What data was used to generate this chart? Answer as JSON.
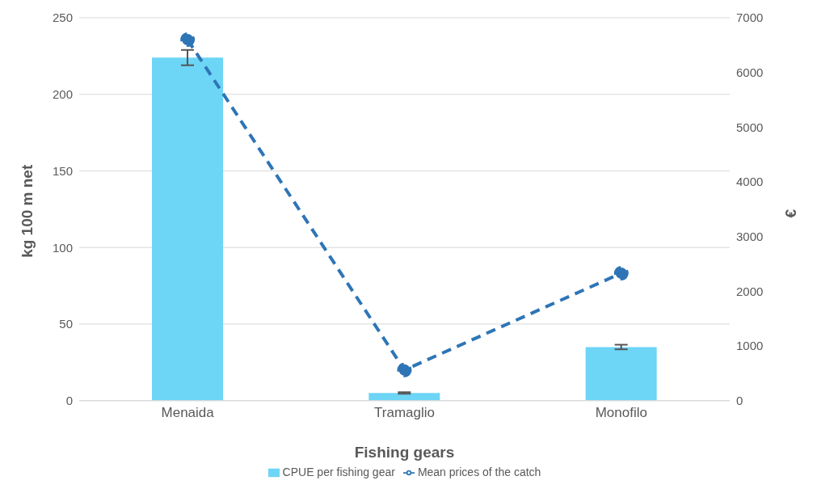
{
  "chart_data": {
    "type": "bar",
    "xlabel": "Fishing gears",
    "ylabel": "kg 100 m net",
    "y2label": "€",
    "categories": [
      "Menaida",
      "Tramaglio",
      "Monofilo"
    ],
    "series": [
      {
        "name": "CPUE per fishing gear",
        "color": "#6dd5f5",
        "values": [
          224,
          5,
          35
        ],
        "errors": [
          5,
          0.5,
          1.5
        ]
      },
      {
        "name": "Mean prices of the catch",
        "type": "line",
        "axis": "y2",
        "color": "#2e75b6",
        "values": [
          6600,
          560,
          2330
        ],
        "marker": "circle",
        "line_style": "dashed"
      }
    ],
    "ylim": [
      0,
      250
    ],
    "yticks": [
      0,
      50,
      100,
      150,
      200,
      250
    ],
    "y2lim": [
      0,
      7000
    ],
    "y2ticks": [
      0,
      1000,
      2000,
      3000,
      4000,
      5000,
      6000,
      7000
    ],
    "grid": "y",
    "legend": "bottom"
  }
}
